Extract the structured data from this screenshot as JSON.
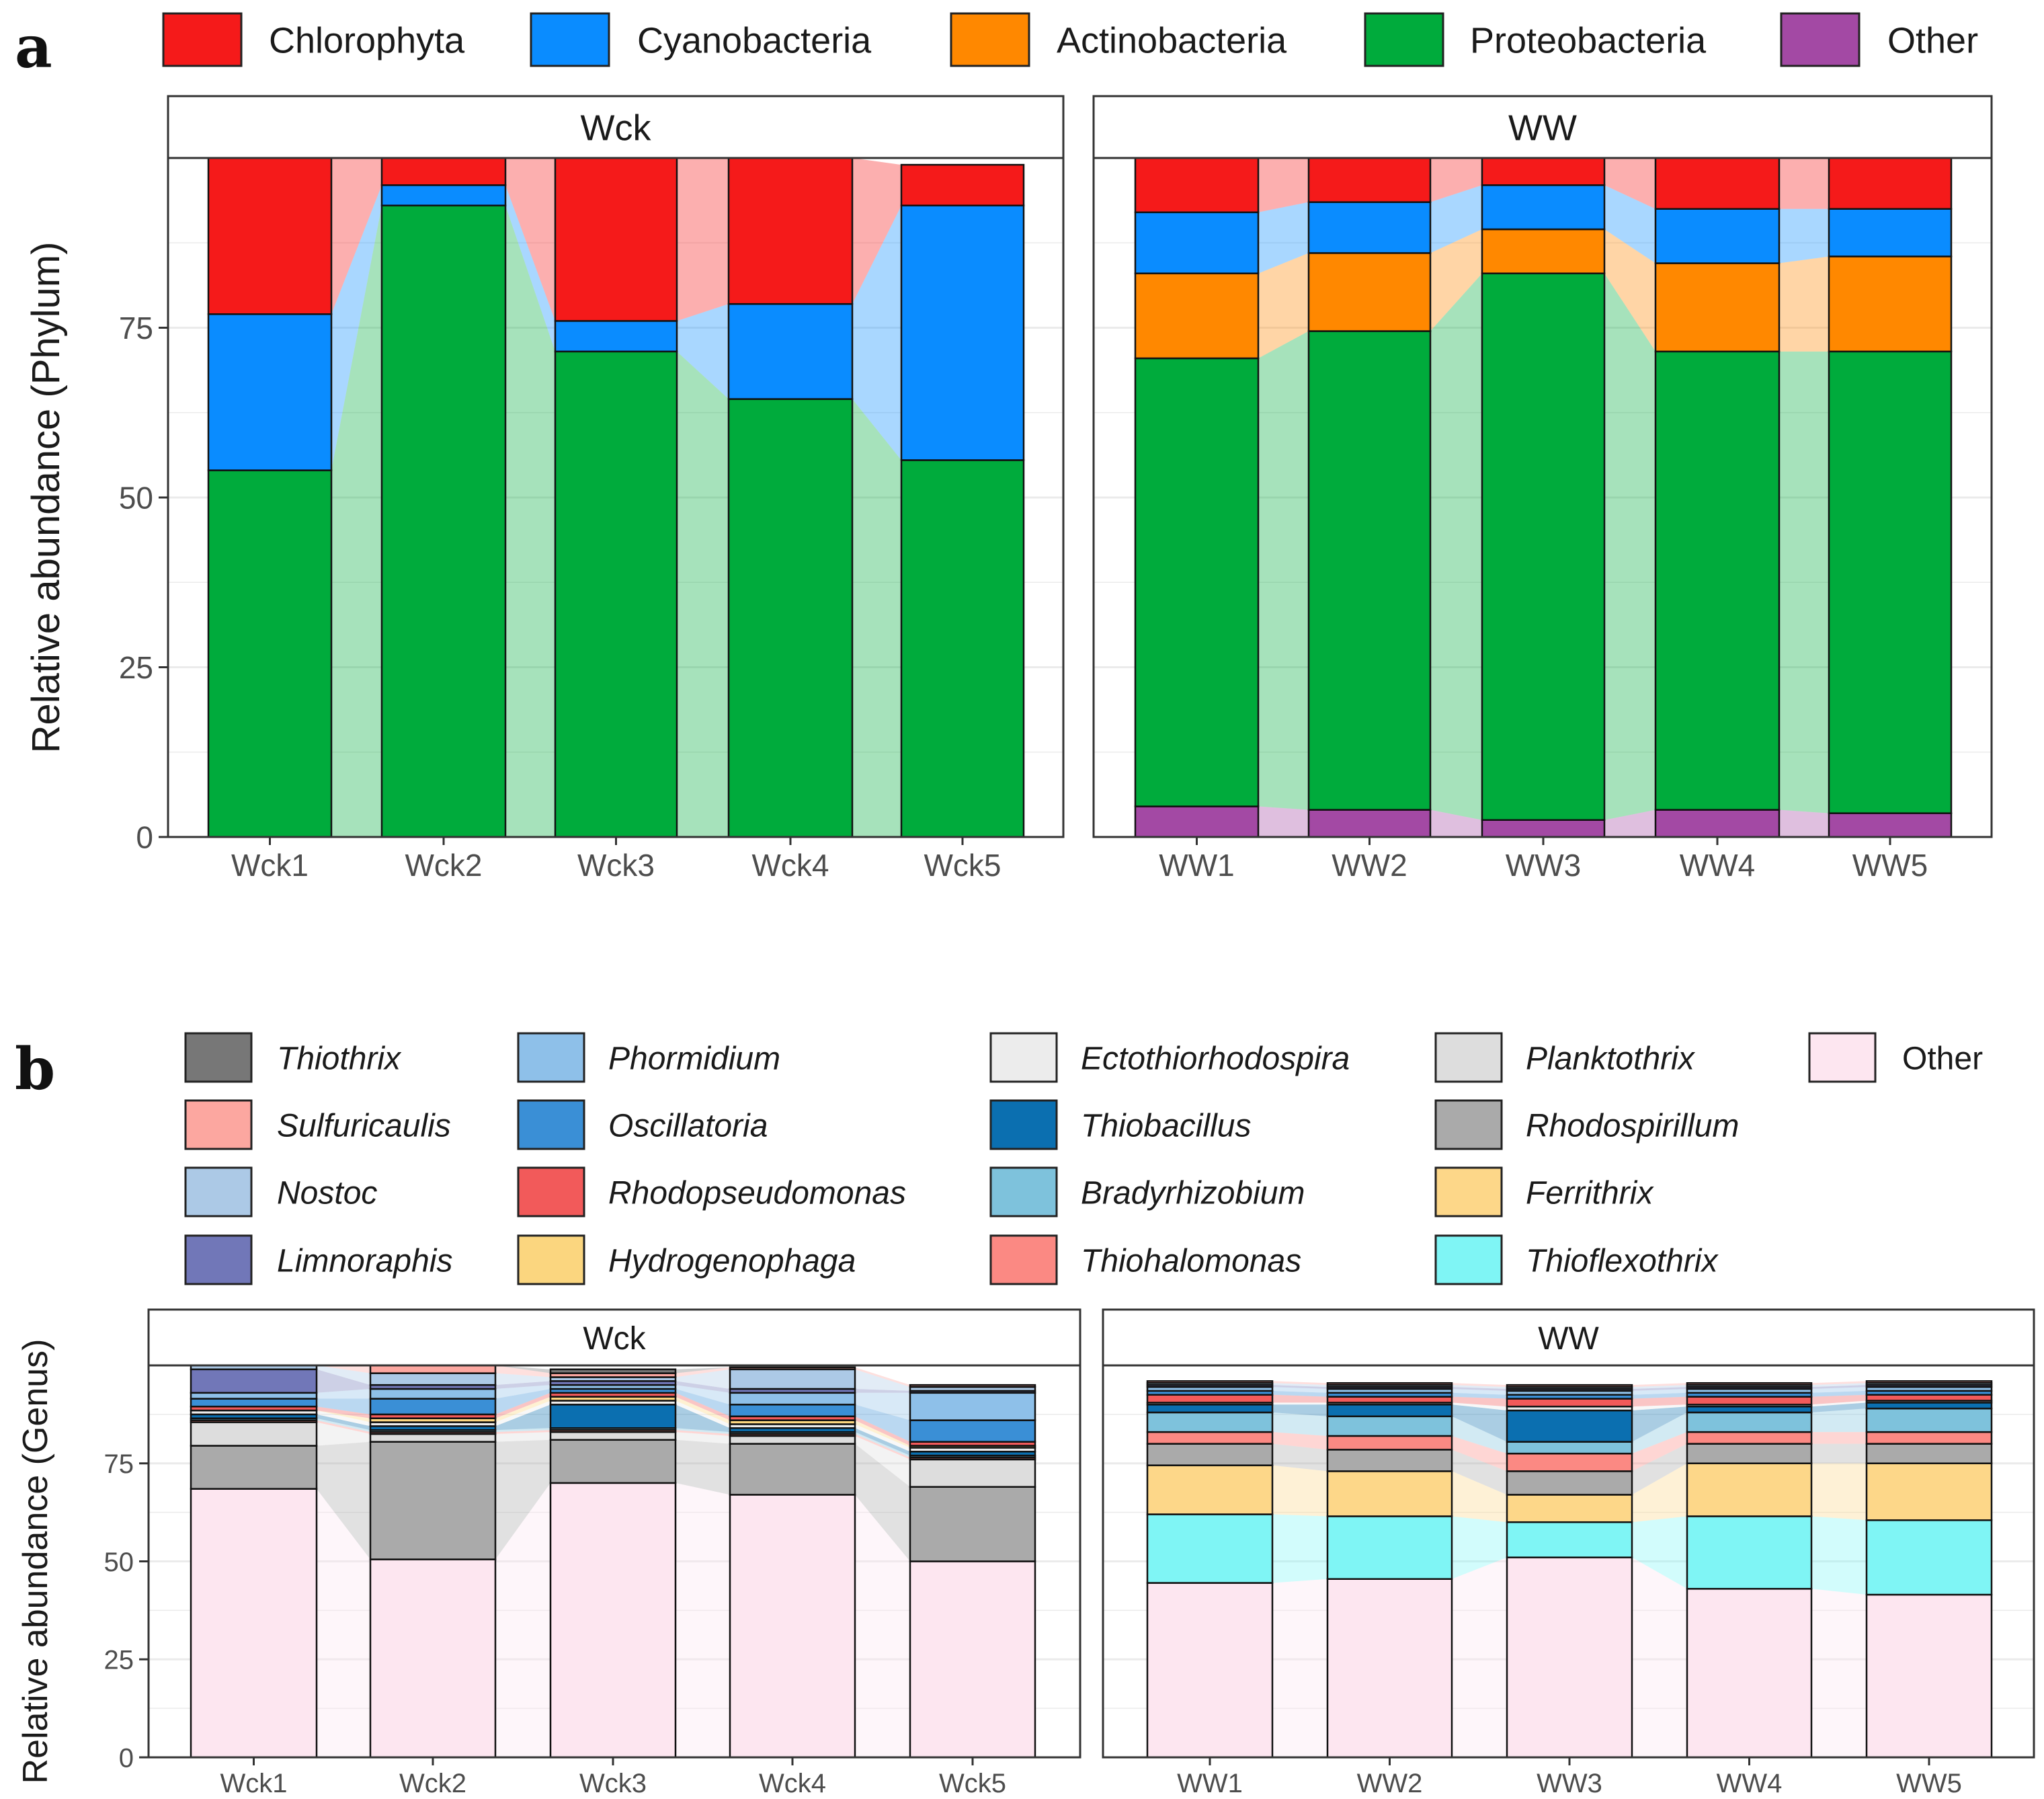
{
  "colors": {
    "strip_bg": "#ffffff",
    "grid": "#ebebeb",
    "axis": "#333333",
    "text": "#1a1a1a",
    "tick_text": "#4d4d4d"
  },
  "chart_data": [
    {
      "panel_label": "a",
      "type": "bar",
      "stacked": true,
      "ylabel": "Relative abundance (Phylum)",
      "ylim": [
        0,
        100
      ],
      "yticks": [
        0,
        25,
        50,
        75
      ],
      "legend_position": "top",
      "facets": [
        {
          "name": "Wck",
          "categories": [
            "Wck1",
            "Wck2",
            "Wck3",
            "Wck4",
            "Wck5"
          ]
        },
        {
          "name": "WW",
          "categories": [
            "WW1",
            "WW2",
            "WW3",
            "WW4",
            "WW5"
          ]
        }
      ],
      "series": [
        {
          "name": "Other",
          "color": "#a349a4",
          "values": [
            0,
            0,
            0,
            0,
            0,
            4.5,
            4.0,
            2.5,
            4.0,
            3.5
          ]
        },
        {
          "name": "Proteobacteria",
          "color": "#00ab3c",
          "values": [
            54,
            93,
            71.5,
            64.5,
            55.5,
            66,
            70.5,
            80.5,
            67.5,
            68
          ]
        },
        {
          "name": "Actinobacteria",
          "color": "#ff8800",
          "values": [
            0,
            0,
            0,
            0,
            0,
            12.5,
            11.5,
            6.5,
            13,
            14
          ]
        },
        {
          "name": "Cyanobacteria",
          "color": "#0a8cff",
          "values": [
            23,
            3,
            4.5,
            14,
            37.5,
            9,
            7.5,
            6.5,
            8,
            7
          ]
        },
        {
          "name": "Chlorophyta",
          "color": "#f51a1a",
          "values": [
            23,
            4,
            24,
            21.5,
            6,
            8,
            6.5,
            4,
            7.5,
            7.5
          ]
        }
      ]
    },
    {
      "panel_label": "b",
      "type": "bar",
      "stacked": true,
      "ylabel": "Relative abundance (Genus)",
      "ylim": [
        0,
        100
      ],
      "yticks": [
        0,
        25,
        50,
        75
      ],
      "legend_position": "top",
      "facets": [
        {
          "name": "Wck",
          "categories": [
            "Wck1",
            "Wck2",
            "Wck3",
            "Wck4",
            "Wck5"
          ]
        },
        {
          "name": "WW",
          "categories": [
            "WW1",
            "WW2",
            "WW3",
            "WW4",
            "WW5"
          ]
        }
      ],
      "series": [
        {
          "name": "Other",
          "color": "#fde6f0",
          "values": [
            68.5,
            50.5,
            70,
            67,
            50,
            44.5,
            45.5,
            51,
            43,
            41.5
          ]
        },
        {
          "name": "Thioflexothrix",
          "color": "#7ff5f5",
          "values": [
            0,
            0,
            0,
            0,
            0,
            17.5,
            16,
            9,
            18.5,
            19
          ]
        },
        {
          "name": "Ferrithrix",
          "color": "#fdd789",
          "values": [
            0,
            0,
            0,
            0,
            0,
            12.5,
            11.5,
            7,
            13.5,
            14.5
          ]
        },
        {
          "name": "Rhodospirillum",
          "color": "#aaaaaa",
          "values": [
            11,
            30,
            11,
            13,
            19,
            5.5,
            5.5,
            6,
            5,
            5
          ]
        },
        {
          "name": "Planktothrix",
          "color": "#dddddd",
          "values": [
            6,
            2,
            2,
            2,
            7,
            0,
            0,
            0,
            0,
            0
          ]
        },
        {
          "name": "Thiohalomonas",
          "color": "#fb8983",
          "values": [
            0.5,
            0.5,
            0.5,
            0.5,
            0.5,
            3,
            3.5,
            4.5,
            3,
            3
          ]
        },
        {
          "name": "Bradyrhizobium",
          "color": "#7ec2dc",
          "values": [
            0.5,
            0.5,
            0.5,
            0.5,
            0.5,
            5,
            5,
            3,
            5,
            6
          ]
        },
        {
          "name": "Thiobacillus",
          "color": "#0b6fb0",
          "values": [
            1,
            1,
            6,
            1,
            1,
            2,
            3,
            8,
            1.5,
            1.5
          ]
        },
        {
          "name": "Ectothiorhodospira",
          "color": "#ececec",
          "values": [
            1,
            1,
            1,
            1,
            1,
            0.5,
            0.5,
            1,
            0.5,
            0.5
          ]
        },
        {
          "name": "Hydrogenophaga",
          "color": "#fbd67f",
          "values": [
            0,
            1,
            1,
            1,
            0.5,
            0,
            0,
            0,
            0,
            0
          ]
        },
        {
          "name": "Rhodopseudomonas",
          "color": "#f25a5a",
          "values": [
            1,
            1,
            1,
            1,
            1,
            2,
            1.5,
            2,
            2,
            1.5
          ]
        },
        {
          "name": "Oscillatoria",
          "color": "#3a8fd6",
          "values": [
            2,
            4,
            1,
            3,
            5.5,
            1,
            1,
            1,
            1,
            1
          ]
        },
        {
          "name": "Phormidium",
          "color": "#8ec0e9",
          "values": [
            1.5,
            2.5,
            1,
            3,
            7,
            1,
            1,
            1,
            1,
            1
          ]
        },
        {
          "name": "Limnoraphis",
          "color": "#7177b8",
          "values": [
            6,
            1,
            1,
            1,
            0.5,
            0.5,
            0.5,
            0.5,
            0.5,
            0.5
          ]
        },
        {
          "name": "Nostoc",
          "color": "#acc9e6",
          "values": [
            1,
            3,
            1,
            5,
            1,
            0.5,
            0.5,
            0.5,
            0.5,
            0.5
          ]
        },
        {
          "name": "Sulfuricaulis",
          "color": "#fca7a0",
          "values": [
            0,
            2,
            1,
            0.5,
            0.5,
            0.5,
            0.5,
            0.5,
            0.5,
            0.5
          ]
        },
        {
          "name": "Thiothrix",
          "color": "#777777",
          "values": [
            0,
            0,
            1,
            0,
            0,
            0,
            0,
            0,
            0,
            0
          ]
        }
      ],
      "legend_order": [
        "Thiothrix",
        "Sulfuricaulis",
        "Nostoc",
        "Limnoraphis",
        "Phormidium",
        "Oscillatoria",
        "Rhodopseudomonas",
        "Hydrogenophaga",
        "Ectothiorhodospira",
        "Thiobacillus",
        "Bradyrhizobium",
        "Thiohalomonas",
        "Planktothrix",
        "Rhodospirillum",
        "Ferrithrix",
        "Thioflexothrix",
        "Other"
      ]
    }
  ]
}
